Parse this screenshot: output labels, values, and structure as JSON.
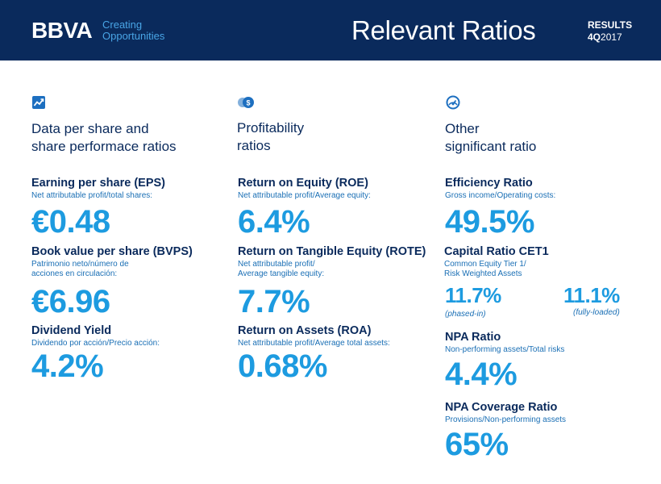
{
  "header": {
    "logo": "BBVA",
    "tagline_line1": "Creating",
    "tagline_line2": "Opportunities",
    "title": "Relevant Ratios",
    "results_label": "RESULTS",
    "period_quarter": "4Q",
    "period_year": "2017"
  },
  "colors": {
    "navy": "#0a2a5c",
    "accent": "#1d9be0",
    "light_blue": "#49a5e6"
  },
  "columns": [
    {
      "icon": "chart-trend-icon",
      "title_line1": "Data per share and",
      "title_line2": "share performace ratios",
      "metrics": [
        {
          "name": "Earning per share (EPS)",
          "desc": "Net attributable profit/total shares:",
          "value": "€0.48"
        },
        {
          "name": "Book value per share (BVPS)",
          "desc_line1": "Patrimonio neto/número de",
          "desc_line2": "acciones en circulación:",
          "value": "€6.96"
        },
        {
          "name": "Dividend Yield",
          "desc": "Dividendo por acción/Precio acción:",
          "value": "4.2%"
        }
      ]
    },
    {
      "icon": "coins-icon",
      "title_line1": "Profitability",
      "title_line2": "ratios",
      "metrics": [
        {
          "name": "Return on Equity (ROE)",
          "desc": "Net attributable profit/Average equity:",
          "value": "6.4%"
        },
        {
          "name": "Return on Tangible Equity (ROTE)",
          "desc_line1": "Net attributable profit/",
          "desc_line2": "Average tangible equity:",
          "value": "7.7%"
        },
        {
          "name": "Return on Assets (ROA)",
          "desc": "Net attributable profit/Average total assets:",
          "value": "0.68%"
        }
      ]
    },
    {
      "icon": "gauge-icon",
      "title_line1": "Other",
      "title_line2": "significant ratio",
      "metrics": [
        {
          "name": "Efficiency Ratio",
          "desc": "Gross income/Operating costs:",
          "value": "49.5%"
        },
        {
          "name": "Capital Ratio CET1",
          "desc_line1": "Common Equity Tier 1/",
          "desc_line2": "Risk Weighted Assets",
          "value_a": "11.7%",
          "label_a": "(phased-in)",
          "value_b": "11.1%",
          "label_b": "(fully-loaded)"
        },
        {
          "name": "NPA Ratio",
          "desc": "Non-performing assets/Total risks",
          "value": "4.4%"
        },
        {
          "name": "NPA Coverage Ratio",
          "desc": "Provisions/Non-performing assets",
          "value": "65%"
        }
      ]
    }
  ]
}
